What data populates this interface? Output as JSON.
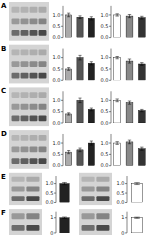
{
  "chart_data": [
    {
      "type": "bar",
      "title": "A",
      "categories": [
        null,
        null,
        null
      ],
      "values": [
        1.0,
        0.9,
        0.85
      ],
      "errors": [
        0.08,
        0.06,
        0.07
      ],
      "colors": [
        "#aaaaaa",
        "#555555",
        "#222222"
      ],
      "ylim": [
        0,
        1.4
      ],
      "yticks": [
        {
          "value": 0,
          "label": "0.0"
        },
        {
          "value": 0.5,
          "label": "0.5"
        },
        {
          "value": 1,
          "label": "1.0"
        }
      ],
      "tick_labels": "y"
    },
    {
      "type": "bar",
      "categories": [
        null,
        null,
        null
      ],
      "values": [
        1.0,
        0.95,
        0.88
      ],
      "errors": [
        0.05,
        0.07,
        0.06
      ],
      "colors": [
        "#ffffff",
        "#888888",
        "#333333"
      ],
      "ylim": [
        0,
        1.4
      ],
      "yticks": [
        {
          "value": 0,
          "label": "0.0"
        },
        {
          "value": 0.5,
          "label": "0.5"
        },
        {
          "value": 1,
          "label": "1.0"
        }
      ],
      "tick_labels": "y"
    },
    {
      "type": "bar",
      "title": "B",
      "categories": [
        null,
        null,
        null
      ],
      "values": [
        0.5,
        1.0,
        0.75
      ],
      "errors": [
        0.06,
        0.1,
        0.07
      ],
      "colors": [
        "#aaaaaa",
        "#555555",
        "#222222"
      ],
      "ylim": [
        0,
        1.4
      ],
      "yticks": [
        {
          "value": 0,
          "label": "0.0"
        },
        {
          "value": 0.5,
          "label": "0.5"
        },
        {
          "value": 1,
          "label": "1.0"
        }
      ],
      "tick_labels": "y"
    },
    {
      "type": "bar",
      "categories": [
        null,
        null,
        null
      ],
      "values": [
        1.0,
        0.85,
        0.72
      ],
      "errors": [
        0.05,
        0.09,
        0.06
      ],
      "colors": [
        "#ffffff",
        "#888888",
        "#333333"
      ],
      "ylim": [
        0,
        1.4
      ],
      "yticks": [
        {
          "value": 0,
          "label": "0.0"
        },
        {
          "value": 0.5,
          "label": "0.5"
        },
        {
          "value": 1,
          "label": "1.0"
        }
      ],
      "tick_labels": "y"
    },
    {
      "type": "bar",
      "title": "C",
      "categories": [
        null,
        null,
        null
      ],
      "values": [
        0.4,
        1.0,
        0.6
      ],
      "errors": [
        0.05,
        0.1,
        0.06
      ],
      "colors": [
        "#aaaaaa",
        "#555555",
        "#222222"
      ],
      "ylim": [
        0,
        1.4
      ],
      "yticks": [
        {
          "value": 0,
          "label": "0.0"
        },
        {
          "value": 0.5,
          "label": "0.5"
        },
        {
          "value": 1,
          "label": "1.0"
        }
      ],
      "tick_labels": "y"
    },
    {
      "type": "bar",
      "categories": [
        null,
        null,
        null
      ],
      "values": [
        1.0,
        0.9,
        0.55
      ],
      "errors": [
        0.06,
        0.07,
        0.05
      ],
      "colors": [
        "#ffffff",
        "#888888",
        "#333333"
      ],
      "ylim": [
        0,
        1.4
      ],
      "yticks": [
        {
          "value": 0,
          "label": "0.0"
        },
        {
          "value": 0.5,
          "label": "0.5"
        },
        {
          "value": 1,
          "label": "1.0"
        }
      ],
      "tick_labels": "y"
    },
    {
      "type": "bar",
      "title": "D",
      "categories": [
        null,
        null,
        null
      ],
      "values": [
        0.6,
        0.7,
        1.0
      ],
      "errors": [
        0.07,
        0.08,
        0.09
      ],
      "colors": [
        "#aaaaaa",
        "#555555",
        "#222222"
      ],
      "ylim": [
        0,
        1.4
      ],
      "yticks": [
        {
          "value": 0,
          "label": "0.0"
        },
        {
          "value": 0.5,
          "label": "0.5"
        },
        {
          "value": 1,
          "label": "1.0"
        }
      ],
      "tick_labels": "y"
    },
    {
      "type": "bar",
      "categories": [
        null,
        null,
        null
      ],
      "values": [
        1.0,
        1.05,
        0.75
      ],
      "errors": [
        0.06,
        0.08,
        0.07
      ],
      "colors": [
        "#ffffff",
        "#888888",
        "#333333"
      ],
      "ylim": [
        0,
        1.4
      ],
      "yticks": [
        {
          "value": 0,
          "label": "0.0"
        },
        {
          "value": 0.5,
          "label": "0.5"
        },
        {
          "value": 1,
          "label": "1.0"
        }
      ],
      "tick_labels": "y"
    },
    {
      "type": "bar",
      "title": "E",
      "categories": [
        null
      ],
      "values": [
        1.0
      ],
      "errors": [
        0.06
      ],
      "colors": [
        "#222222"
      ],
      "ylim": [
        0,
        1.4
      ],
      "yticks": [
        {
          "value": 0,
          "label": "0.0"
        },
        {
          "value": 0.5,
          "label": "0.5"
        },
        {
          "value": 1,
          "label": "1.0"
        }
      ],
      "tick_labels": "y"
    },
    {
      "type": "bar",
      "categories": [
        null
      ],
      "values": [
        1.0
      ],
      "errors": [
        0.05
      ],
      "colors": [
        "#ffffff"
      ],
      "ylim": [
        0,
        1.4
      ],
      "yticks": [
        {
          "value": 0,
          "label": "0.0"
        },
        {
          "value": 0.5,
          "label": "0.5"
        },
        {
          "value": 1,
          "label": "1.0"
        }
      ],
      "tick_labels": "y"
    },
    {
      "type": "bar",
      "title": "F",
      "categories": [
        null
      ],
      "values": [
        1.0
      ],
      "errors": [
        0.05
      ],
      "colors": [
        "#222222"
      ],
      "ylim": [
        0,
        1.4
      ],
      "yticks": [
        0,
        1
      ],
      "tick_labels": "y"
    },
    {
      "type": "bar",
      "categories": [
        null
      ],
      "values": [
        1.0
      ],
      "errors": [
        0.04
      ],
      "colors": [
        "#ffffff"
      ],
      "ylim": [
        0,
        1.4
      ],
      "yticks": [
        0,
        1
      ],
      "tick_labels": "y"
    }
  ]
}
